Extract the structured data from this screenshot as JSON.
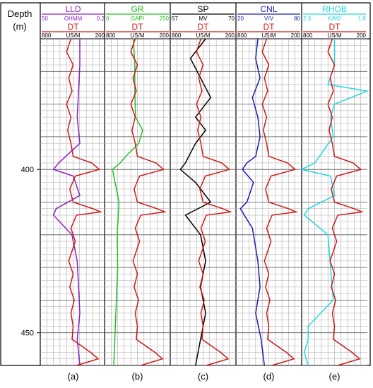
{
  "chart_data": {
    "type": "line",
    "depth_axis": {
      "label": "Depth",
      "unit": "(m)",
      "ticks": [
        400,
        450
      ],
      "range": [
        360,
        460
      ],
      "inverted": true
    },
    "grid": true,
    "overlay_curve": {
      "name": "DT",
      "unit": "US/M",
      "range": [
        800,
        200
      ],
      "color": "#d01818"
    },
    "tracks": [
      {
        "panel": "(a)",
        "name": "LLD",
        "unit": "OHMM",
        "range": [
          50,
          0.2
        ],
        "color": "#8a22c8",
        "depth": [
          360,
          368,
          376,
          384,
          392,
          398,
          400,
          402,
          408,
          412,
          414,
          420,
          428,
          436,
          444,
          452,
          456,
          460
        ],
        "values": [
          20,
          20,
          21,
          22,
          20,
          36,
          40,
          25,
          20,
          38,
          40,
          26,
          22,
          21,
          20,
          22,
          21,
          20
        ]
      },
      {
        "panel": "(b)",
        "name": "GR",
        "unit": "GAPI",
        "range": [
          0,
          250
        ],
        "color": "#22c022",
        "depth": [
          360,
          368,
          376,
          384,
          388,
          392,
          396,
          398,
          400,
          404,
          410,
          420,
          430,
          440,
          450,
          460
        ],
        "values": [
          110,
          115,
          115,
          118,
          145,
          130,
          80,
          60,
          30,
          40,
          55,
          48,
          50,
          45,
          40,
          35
        ]
      },
      {
        "panel": "(c)",
        "name": "SP",
        "unit": "MV",
        "range": [
          57,
          70
        ],
        "color": "#000000",
        "depth": [
          360,
          366,
          372,
          378,
          384,
          388,
          392,
          398,
          400,
          404,
          410,
          414,
          420,
          428,
          436,
          444,
          452,
          460
        ],
        "values": [
          64,
          61,
          63,
          65,
          62,
          64,
          62,
          60,
          59,
          62,
          65,
          60,
          63,
          64,
          63,
          64,
          63,
          62
        ]
      },
      {
        "panel": "(d)",
        "name": "CNL",
        "unit": "V/V",
        "range": [
          20,
          80
        ],
        "color": "#1a1ab8",
        "depth": [
          360,
          366,
          372,
          378,
          384,
          390,
          396,
          398,
          400,
          404,
          410,
          412,
          418,
          428,
          436,
          444,
          452,
          460
        ],
        "values": [
          40,
          38,
          42,
          35,
          40,
          42,
          38,
          30,
          26,
          36,
          30,
          24,
          35,
          40,
          42,
          38,
          43,
          46
        ]
      },
      {
        "panel": "(e)",
        "name": "RHOB",
        "unit": "K/M3",
        "range": [
          2.3,
          1.8
        ],
        "color": "#22d8e0",
        "depth": [
          360,
          368,
          374,
          376,
          380,
          384,
          390,
          398,
          400,
          402,
          408,
          412,
          414,
          420,
          430,
          440,
          448,
          452,
          456,
          460
        ],
        "values": [
          2.05,
          2.05,
          2.1,
          1.8,
          2.05,
          2.08,
          2.06,
          2.2,
          2.3,
          2.08,
          2.05,
          2.25,
          2.28,
          2.1,
          2.08,
          2.06,
          2.25,
          2.25,
          2.28,
          2.25
        ]
      }
    ],
    "dt_curve": {
      "depth": [
        360,
        364,
        368,
        372,
        376,
        380,
        384,
        388,
        392,
        396,
        398,
        400,
        402,
        406,
        410,
        412,
        413,
        414,
        418,
        422,
        428,
        432,
        436,
        440,
        444,
        448,
        452,
        456,
        458,
        460
      ],
      "values": [
        520,
        560,
        500,
        540,
        510,
        560,
        520,
        550,
        520,
        500,
        330,
        260,
        480,
        530,
        500,
        320,
        250,
        470,
        520,
        480,
        540,
        500,
        530,
        490,
        520,
        500,
        510,
        340,
        270,
        470
      ]
    }
  }
}
